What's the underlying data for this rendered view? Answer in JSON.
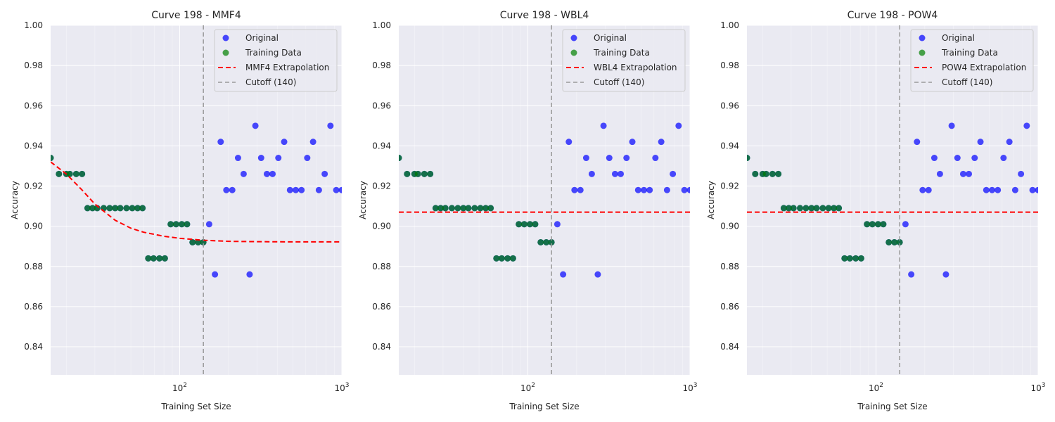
{
  "colors": {
    "original": "#0000ff",
    "training": "#008000",
    "overlap": "#006633",
    "extrapolation": "#ff0000",
    "cutoff": "#999999"
  },
  "chart_data": [
    {
      "type": "scatter",
      "title": "Curve 198 - MMF4",
      "xlabel": "Training Set Size",
      "ylabel": "Accuracy",
      "x_scale": "log",
      "xlim": [
        16,
        1000
      ],
      "ylim": [
        0.826,
        1.0
      ],
      "x_tick_labels": [
        {
          "value": 100,
          "base": "10",
          "exp": "2"
        },
        {
          "value": 1000,
          "base": "10",
          "exp": "3"
        }
      ],
      "y_ticks": [
        0.84,
        0.86,
        0.88,
        0.9,
        0.92,
        0.94,
        0.96,
        0.98,
        1.0
      ],
      "y_tick_labels": [
        "0.84",
        "0.86",
        "0.88",
        "0.90",
        "0.92",
        "0.94",
        "0.96",
        "0.98",
        "1.00"
      ],
      "grid": true,
      "legend_position": "top-right",
      "legend": [
        "Original",
        "Training Data",
        "MMF4 Extrapolation",
        "Cutoff (140)"
      ],
      "cutoff_x": 140,
      "training": {
        "x": [
          16,
          18,
          20,
          21,
          23,
          25,
          27,
          29,
          31,
          34,
          37,
          40,
          43,
          47,
          51,
          55,
          59,
          64,
          69,
          75,
          81,
          88,
          95,
          103,
          111,
          120,
          130,
          140
        ],
        "y": [
          0.934,
          0.926,
          0.926,
          0.926,
          0.926,
          0.926,
          0.909,
          0.909,
          0.909,
          0.909,
          0.909,
          0.909,
          0.909,
          0.909,
          0.909,
          0.909,
          0.909,
          0.884,
          0.884,
          0.884,
          0.884,
          0.901,
          0.901,
          0.901,
          0.901,
          0.892,
          0.892,
          0.892
        ]
      },
      "original": {
        "x": [
          16,
          18,
          20,
          21,
          23,
          25,
          27,
          29,
          31,
          34,
          37,
          40,
          43,
          47,
          51,
          55,
          59,
          64,
          69,
          75,
          81,
          88,
          95,
          103,
          111,
          120,
          130,
          140,
          152,
          165,
          179,
          194,
          211,
          229,
          248,
          270,
          293,
          318,
          345,
          374,
          406,
          441,
          479,
          520,
          564,
          612,
          665,
          722,
          784,
          851,
          924,
          1000
        ],
        "y": [
          0.934,
          0.926,
          0.926,
          0.926,
          0.926,
          0.926,
          0.909,
          0.909,
          0.909,
          0.909,
          0.909,
          0.909,
          0.909,
          0.909,
          0.909,
          0.909,
          0.909,
          0.884,
          0.884,
          0.884,
          0.884,
          0.901,
          0.901,
          0.901,
          0.901,
          0.892,
          0.892,
          0.892,
          0.901,
          0.876,
          0.942,
          0.918,
          0.918,
          0.934,
          0.926,
          0.876,
          0.95,
          0.934,
          0.926,
          0.926,
          0.934,
          0.942,
          0.918,
          0.918,
          0.918,
          0.934,
          0.942,
          0.918,
          0.926,
          0.95,
          0.918,
          0.918
        ]
      },
      "extrapolation": {
        "x": [
          16,
          20,
          25,
          30,
          40,
          50,
          60,
          80,
          100,
          140,
          200,
          300,
          500,
          1000
        ],
        "y": [
          0.932,
          0.926,
          0.918,
          0.911,
          0.903,
          0.899,
          0.897,
          0.895,
          0.894,
          0.893,
          0.8925,
          0.8923,
          0.8922,
          0.8922
        ]
      }
    },
    {
      "type": "scatter",
      "title": "Curve 198 - WBL4",
      "xlabel": "Training Set Size",
      "ylabel": "Accuracy",
      "x_scale": "log",
      "xlim": [
        16,
        1000
      ],
      "ylim": [
        0.826,
        1.0
      ],
      "x_tick_labels": [
        {
          "value": 100,
          "base": "10",
          "exp": "2"
        },
        {
          "value": 1000,
          "base": "10",
          "exp": "3"
        }
      ],
      "y_ticks": [
        0.84,
        0.86,
        0.88,
        0.9,
        0.92,
        0.94,
        0.96,
        0.98,
        1.0
      ],
      "y_tick_labels": [
        "0.84",
        "0.86",
        "0.88",
        "0.90",
        "0.92",
        "0.94",
        "0.96",
        "0.98",
        "1.00"
      ],
      "grid": true,
      "legend_position": "top-right",
      "legend": [
        "Original",
        "Training Data",
        "WBL4 Extrapolation",
        "Cutoff (140)"
      ],
      "cutoff_x": 140,
      "training": {
        "x": [
          16,
          18,
          20,
          21,
          23,
          25,
          27,
          29,
          31,
          34,
          37,
          40,
          43,
          47,
          51,
          55,
          59,
          64,
          69,
          75,
          81,
          88,
          95,
          103,
          111,
          120,
          130,
          140
        ],
        "y": [
          0.934,
          0.926,
          0.926,
          0.926,
          0.926,
          0.926,
          0.909,
          0.909,
          0.909,
          0.909,
          0.909,
          0.909,
          0.909,
          0.909,
          0.909,
          0.909,
          0.909,
          0.884,
          0.884,
          0.884,
          0.884,
          0.901,
          0.901,
          0.901,
          0.901,
          0.892,
          0.892,
          0.892
        ]
      },
      "original": {
        "x": [
          16,
          18,
          20,
          21,
          23,
          25,
          27,
          29,
          31,
          34,
          37,
          40,
          43,
          47,
          51,
          55,
          59,
          64,
          69,
          75,
          81,
          88,
          95,
          103,
          111,
          120,
          130,
          140,
          152,
          165,
          179,
          194,
          211,
          229,
          248,
          270,
          293,
          318,
          345,
          374,
          406,
          441,
          479,
          520,
          564,
          612,
          665,
          722,
          784,
          851,
          924,
          1000
        ],
        "y": [
          0.934,
          0.926,
          0.926,
          0.926,
          0.926,
          0.926,
          0.909,
          0.909,
          0.909,
          0.909,
          0.909,
          0.909,
          0.909,
          0.909,
          0.909,
          0.909,
          0.909,
          0.884,
          0.884,
          0.884,
          0.884,
          0.901,
          0.901,
          0.901,
          0.901,
          0.892,
          0.892,
          0.892,
          0.901,
          0.876,
          0.942,
          0.918,
          0.918,
          0.934,
          0.926,
          0.876,
          0.95,
          0.934,
          0.926,
          0.926,
          0.934,
          0.942,
          0.918,
          0.918,
          0.918,
          0.934,
          0.942,
          0.918,
          0.926,
          0.95,
          0.918,
          0.918
        ]
      },
      "extrapolation": {
        "x": [
          16,
          1000
        ],
        "y": [
          0.907,
          0.907
        ]
      }
    },
    {
      "type": "scatter",
      "title": "Curve 198 - POW4",
      "xlabel": "Training Set Size",
      "ylabel": "Accuracy",
      "x_scale": "log",
      "xlim": [
        16,
        1000
      ],
      "ylim": [
        0.826,
        1.0
      ],
      "x_tick_labels": [
        {
          "value": 100,
          "base": "10",
          "exp": "2"
        },
        {
          "value": 1000,
          "base": "10",
          "exp": "3"
        }
      ],
      "y_ticks": [
        0.84,
        0.86,
        0.88,
        0.9,
        0.92,
        0.94,
        0.96,
        0.98,
        1.0
      ],
      "y_tick_labels": [
        "0.84",
        "0.86",
        "0.88",
        "0.90",
        "0.92",
        "0.94",
        "0.96",
        "0.98",
        "1.00"
      ],
      "grid": true,
      "legend_position": "top-right",
      "legend": [
        "Original",
        "Training Data",
        "POW4 Extrapolation",
        "Cutoff (140)"
      ],
      "cutoff_x": 140,
      "training": {
        "x": [
          16,
          18,
          20,
          21,
          23,
          25,
          27,
          29,
          31,
          34,
          37,
          40,
          43,
          47,
          51,
          55,
          59,
          64,
          69,
          75,
          81,
          88,
          95,
          103,
          111,
          120,
          130,
          140
        ],
        "y": [
          0.934,
          0.926,
          0.926,
          0.926,
          0.926,
          0.926,
          0.909,
          0.909,
          0.909,
          0.909,
          0.909,
          0.909,
          0.909,
          0.909,
          0.909,
          0.909,
          0.909,
          0.884,
          0.884,
          0.884,
          0.884,
          0.901,
          0.901,
          0.901,
          0.901,
          0.892,
          0.892,
          0.892
        ]
      },
      "original": {
        "x": [
          16,
          18,
          20,
          21,
          23,
          25,
          27,
          29,
          31,
          34,
          37,
          40,
          43,
          47,
          51,
          55,
          59,
          64,
          69,
          75,
          81,
          88,
          95,
          103,
          111,
          120,
          130,
          140,
          152,
          165,
          179,
          194,
          211,
          229,
          248,
          270,
          293,
          318,
          345,
          374,
          406,
          441,
          479,
          520,
          564,
          612,
          665,
          722,
          784,
          851,
          924,
          1000
        ],
        "y": [
          0.934,
          0.926,
          0.926,
          0.926,
          0.926,
          0.926,
          0.909,
          0.909,
          0.909,
          0.909,
          0.909,
          0.909,
          0.909,
          0.909,
          0.909,
          0.909,
          0.909,
          0.884,
          0.884,
          0.884,
          0.884,
          0.901,
          0.901,
          0.901,
          0.901,
          0.892,
          0.892,
          0.892,
          0.901,
          0.876,
          0.942,
          0.918,
          0.918,
          0.934,
          0.926,
          0.876,
          0.95,
          0.934,
          0.926,
          0.926,
          0.934,
          0.942,
          0.918,
          0.918,
          0.918,
          0.934,
          0.942,
          0.918,
          0.926,
          0.95,
          0.918,
          0.918
        ]
      },
      "extrapolation": {
        "x": [
          16,
          1000
        ],
        "y": [
          0.907,
          0.907
        ]
      }
    }
  ]
}
